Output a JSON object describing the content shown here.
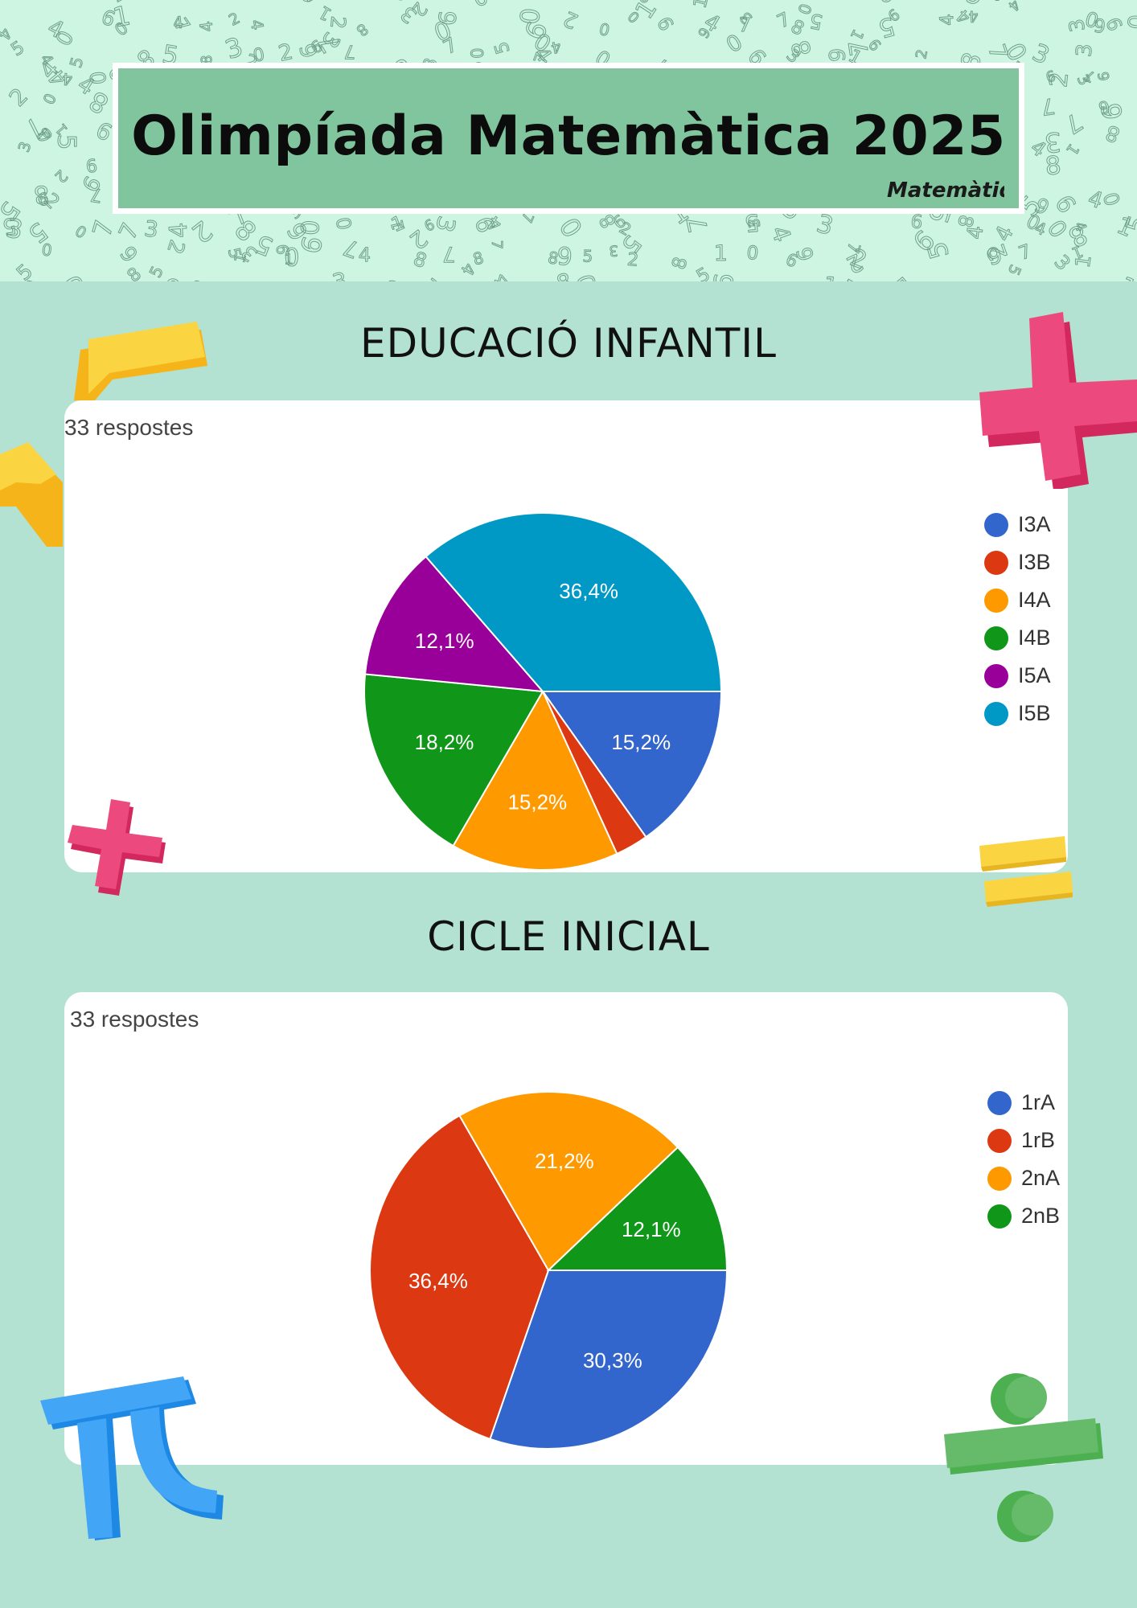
{
  "title": "Olimpíada Matemàtica 2025",
  "logo_text": "Matemàtiques",
  "sections": [
    {
      "title": "EDUCACIÓ INFANTIL",
      "responses": "33 respostes"
    },
    {
      "title": "CICLE INICIAL",
      "responses": "33 respostes"
    }
  ],
  "colors": {
    "background": "#b3e2d2",
    "header_pattern": "#cdf5e1",
    "title_box": "#80c59d"
  },
  "chart_data": [
    {
      "type": "pie",
      "title": "EDUCACIÓ INFANTIL",
      "start_angle_deg": 90,
      "direction": "clockwise",
      "legend_position": "right",
      "categories": [
        "I3A",
        "I3B",
        "I4A",
        "I4B",
        "I5A",
        "I5B"
      ],
      "values": [
        15.2,
        3.0,
        15.2,
        18.2,
        12.1,
        36.4
      ],
      "labels": [
        "15,2%",
        "",
        "15,2%",
        "18,2%",
        "12,1%",
        "36,4%"
      ],
      "colors": [
        "#3366cc",
        "#dc3912",
        "#ff9900",
        "#109618",
        "#990099",
        "#0099c6"
      ]
    },
    {
      "type": "pie",
      "title": "CICLE INICIAL",
      "start_angle_deg": 90,
      "direction": "clockwise",
      "legend_position": "right",
      "categories": [
        "1rA",
        "1rB",
        "2nA",
        "2nB"
      ],
      "values": [
        30.3,
        36.4,
        21.2,
        12.1
      ],
      "labels": [
        "30,3%",
        "36,4%",
        "21,2%",
        "12,1%"
      ],
      "colors": [
        "#3366cc",
        "#dc3912",
        "#ff9900",
        "#109618"
      ]
    }
  ],
  "decorations": [
    "yellow-block-icon",
    "pink-plus-icon",
    "pink-plus-small-icon",
    "yellow-equals-icon",
    "pi-icon",
    "divide-icon"
  ]
}
